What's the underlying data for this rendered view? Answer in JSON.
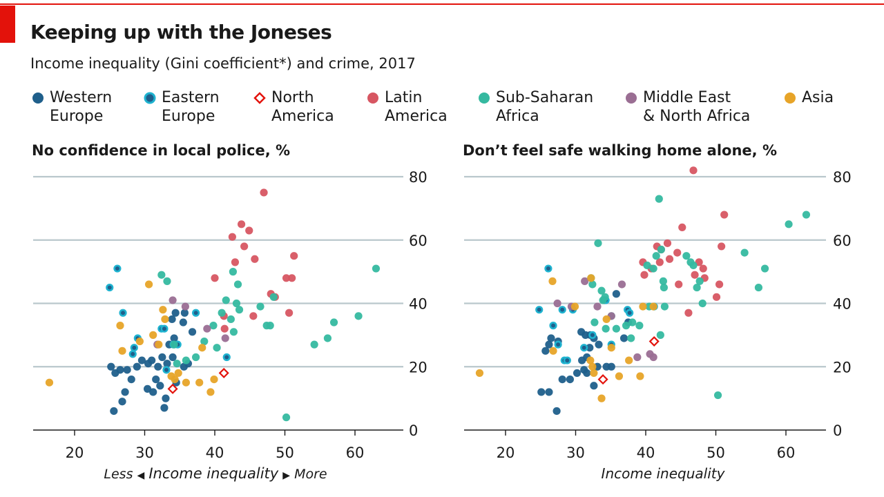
{
  "header": {
    "title": "Keeping up with the Joneses",
    "subtitle": "Income inequality (Gini coefficient*) and crime, 2017"
  },
  "legend": [
    {
      "key": "WE",
      "label": "Western\nEurope",
      "color": "#1f5f8b",
      "style": "filled"
    },
    {
      "key": "EE",
      "label": "Eastern\nEurope",
      "color": "#1fb3d0",
      "style": "ring"
    },
    {
      "key": "NA",
      "label": "North\nAmerica",
      "color": "#e3120b",
      "style": "diamond"
    },
    {
      "key": "LA",
      "label": "Latin\nAmerica",
      "color": "#d75662",
      "style": "filled"
    },
    {
      "key": "SSA",
      "label": "Sub-Saharan\nAfrica",
      "color": "#35b9a0",
      "style": "filled"
    },
    {
      "key": "MENA",
      "label": "Middle East\n& North Africa",
      "color": "#9a6e93",
      "style": "filled"
    },
    {
      "key": "AS",
      "label": "Asia",
      "color": "#e7a428",
      "style": "filled"
    }
  ],
  "axis": {
    "left_label_less": "Less",
    "left_label_main": "Income inequality",
    "left_label_more": "More",
    "right_label": "Income inequality",
    "less_arrow": "◀",
    "more_arrow": "▶"
  },
  "chart_data": [
    {
      "type": "scatter",
      "title": "No confidence in local police, %",
      "xlabel": "Income inequality",
      "ylabel": "No confidence in local police, %",
      "xlim": [
        14.5,
        67
      ],
      "ylim": [
        0,
        80
      ],
      "xticks": [
        20,
        30,
        40,
        50,
        60
      ],
      "yticks": [
        0,
        20,
        40,
        60,
        80
      ],
      "series": [
        {
          "name": "Western Europe",
          "key": "WE",
          "points": [
            [
              25.6,
              6
            ],
            [
              26.8,
              9
            ],
            [
              27.2,
              12
            ],
            [
              28.1,
              16
            ],
            [
              26.5,
              19
            ],
            [
              27.5,
              19
            ],
            [
              25.2,
              20
            ],
            [
              25.8,
              18
            ],
            [
              28.9,
              20
            ],
            [
              29.6,
              22
            ],
            [
              30.5,
              21
            ],
            [
              31,
              22
            ],
            [
              31.9,
              20
            ],
            [
              32.5,
              23
            ],
            [
              33.2,
              21
            ],
            [
              34,
              23
            ],
            [
              30.4,
              13
            ],
            [
              31.2,
              12
            ],
            [
              32.2,
              14
            ],
            [
              33,
              10
            ],
            [
              32.8,
              7
            ],
            [
              34.5,
              15
            ],
            [
              35.6,
              20
            ],
            [
              36.2,
              21
            ],
            [
              31.6,
              16
            ],
            [
              33.5,
              27
            ],
            [
              34.2,
              29
            ],
            [
              35.5,
              34
            ],
            [
              36.8,
              31
            ],
            [
              34.4,
              37
            ],
            [
              33.9,
              35
            ],
            [
              35.7,
              37
            ]
          ]
        },
        {
          "name": "Eastern Europe",
          "key": "EE",
          "points": [
            [
              25,
              45
            ],
            [
              26.1,
              51
            ],
            [
              26.9,
              37
            ],
            [
              28.3,
              24
            ],
            [
              28.5,
              26
            ],
            [
              29,
              29
            ],
            [
              32.4,
              32
            ],
            [
              32.8,
              32
            ],
            [
              34.1,
              27
            ],
            [
              34.7,
              27
            ],
            [
              37.3,
              37
            ],
            [
              41.7,
              23
            ],
            [
              33.1,
              19
            ]
          ]
        },
        {
          "name": "North America",
          "key": "NA",
          "points": [
            [
              34,
              13
            ],
            [
              41.3,
              18
            ]
          ]
        },
        {
          "name": "Latin America",
          "key": "LA",
          "points": [
            [
              47,
              75
            ],
            [
              42.5,
              61
            ],
            [
              43.8,
              65
            ],
            [
              44.9,
              63
            ],
            [
              44.2,
              58
            ],
            [
              42.9,
              53
            ],
            [
              45.7,
              54
            ],
            [
              40,
              48
            ],
            [
              48,
              43
            ],
            [
              48.6,
              42
            ],
            [
              50.2,
              48
            ],
            [
              51,
              48
            ],
            [
              51.3,
              55
            ],
            [
              50.6,
              37
            ],
            [
              45.5,
              36
            ],
            [
              41.3,
              36
            ],
            [
              41.4,
              32
            ]
          ]
        },
        {
          "name": "Sub-Saharan Africa",
          "key": "SSA",
          "points": [
            [
              32.4,
              49
            ],
            [
              33.2,
              47
            ],
            [
              34.2,
              27
            ],
            [
              34.6,
              21
            ],
            [
              35.9,
              22
            ],
            [
              37.3,
              23
            ],
            [
              38.5,
              28
            ],
            [
              39.8,
              33
            ],
            [
              40.3,
              26
            ],
            [
              41,
              37
            ],
            [
              41.6,
              41
            ],
            [
              42.3,
              35
            ],
            [
              42.7,
              31
            ],
            [
              43.1,
              40
            ],
            [
              43.3,
              46
            ],
            [
              42.6,
              50
            ],
            [
              43.5,
              38
            ],
            [
              46.5,
              39
            ],
            [
              47.4,
              33
            ],
            [
              47.9,
              33
            ],
            [
              48.4,
              42
            ],
            [
              50.2,
              4
            ],
            [
              54.2,
              27
            ],
            [
              56.1,
              29
            ],
            [
              57,
              34
            ],
            [
              60.5,
              36
            ],
            [
              63,
              51
            ]
          ]
        },
        {
          "name": "Middle East & North Africa",
          "key": "MENA",
          "points": [
            [
              31.8,
              27
            ],
            [
              34,
              41
            ],
            [
              35.8,
              39
            ],
            [
              38.9,
              32
            ],
            [
              41.5,
              29
            ]
          ]
        },
        {
          "name": "Asia",
          "key": "AS",
          "points": [
            [
              16.4,
              15
            ],
            [
              26.5,
              33
            ],
            [
              26.8,
              25
            ],
            [
              29.3,
              28
            ],
            [
              30.6,
              46
            ],
            [
              31.2,
              30
            ],
            [
              32,
              27
            ],
            [
              32.6,
              38
            ],
            [
              32.9,
              35
            ],
            [
              33.8,
              17
            ],
            [
              34.3,
              16
            ],
            [
              34.8,
              18
            ],
            [
              35.9,
              15
            ],
            [
              37.8,
              15
            ],
            [
              38.2,
              26
            ],
            [
              39.4,
              12
            ],
            [
              39.9,
              16
            ]
          ]
        }
      ]
    },
    {
      "type": "scatter",
      "title": "Don’t feel safe walking home alone, %",
      "xlabel": "Income inequality",
      "ylabel": "Don’t feel safe walking home alone, %",
      "xlim": [
        14.5,
        67
      ],
      "ylim": [
        0,
        80
      ],
      "xticks": [
        20,
        30,
        40,
        50,
        60
      ],
      "yticks": [
        0,
        20,
        40,
        60,
        80
      ],
      "series": [
        {
          "name": "Western Europe",
          "key": "WE",
          "points": [
            [
              25.1,
              12
            ],
            [
              26.2,
              12
            ],
            [
              27.3,
              6
            ],
            [
              28.1,
              16
            ],
            [
              29.2,
              16
            ],
            [
              30.2,
              18
            ],
            [
              31.2,
              19
            ],
            [
              31.6,
              18
            ],
            [
              33.1,
              20
            ],
            [
              30.9,
              22
            ],
            [
              31.6,
              23
            ],
            [
              32,
              26
            ],
            [
              33.3,
              27
            ],
            [
              32.1,
              30
            ],
            [
              31.4,
              30
            ],
            [
              30.8,
              31
            ],
            [
              32.6,
              29
            ],
            [
              26.2,
              27
            ],
            [
              27.5,
              28
            ],
            [
              26.5,
              29
            ],
            [
              25.7,
              25
            ],
            [
              34.1,
              41
            ],
            [
              35.8,
              43
            ],
            [
              37.5,
              34
            ],
            [
              36.9,
              29
            ],
            [
              34.4,
              20
            ],
            [
              32.6,
              14
            ],
            [
              35.1,
              20
            ]
          ]
        },
        {
          "name": "Eastern Europe",
          "key": "EE",
          "points": [
            [
              24.8,
              38
            ],
            [
              26.1,
              51
            ],
            [
              26.8,
              33
            ],
            [
              27.5,
              27
            ],
            [
              28.1,
              38
            ],
            [
              28.4,
              22
            ],
            [
              28.8,
              22
            ],
            [
              32.4,
              30
            ],
            [
              34.3,
              41
            ],
            [
              35.1,
              27
            ],
            [
              37.4,
              38
            ],
            [
              37.7,
              37
            ],
            [
              41.2,
              39
            ],
            [
              31.2,
              26
            ],
            [
              29.6,
              38
            ]
          ]
        },
        {
          "name": "North America",
          "key": "NA",
          "points": [
            [
              33.9,
              16
            ],
            [
              41.2,
              28
            ]
          ]
        },
        {
          "name": "Latin America",
          "key": "LA",
          "points": [
            [
              46.8,
              82
            ],
            [
              51.2,
              68
            ],
            [
              45.2,
              64
            ],
            [
              41.6,
              58
            ],
            [
              42.2,
              57
            ],
            [
              43.1,
              59
            ],
            [
              44.5,
              56
            ],
            [
              43.4,
              54
            ],
            [
              42,
              53
            ],
            [
              40.8,
              51
            ],
            [
              39.8,
              49
            ],
            [
              39.6,
              53
            ],
            [
              47.6,
              53
            ],
            [
              48.2,
              51
            ],
            [
              47,
              49
            ],
            [
              50.8,
              58
            ],
            [
              44.7,
              46
            ],
            [
              48.4,
              48
            ],
            [
              50.5,
              46
            ],
            [
              50.1,
              42
            ],
            [
              46.1,
              37
            ]
          ]
        },
        {
          "name": "Sub-Saharan Africa",
          "key": "SSA",
          "points": [
            [
              32.2,
              48
            ],
            [
              32.4,
              46
            ],
            [
              33.2,
              59
            ],
            [
              33.7,
              44
            ],
            [
              34.2,
              42
            ],
            [
              32.7,
              34
            ],
            [
              34.3,
              32
            ],
            [
              33.9,
              41
            ],
            [
              35.1,
              36
            ],
            [
              35.8,
              32
            ],
            [
              37.2,
              33
            ],
            [
              38.1,
              34
            ],
            [
              39.1,
              33
            ],
            [
              37.9,
              29
            ],
            [
              40.5,
              39
            ],
            [
              40.2,
              52
            ],
            [
              41.1,
              51
            ],
            [
              41.5,
              55
            ],
            [
              41.9,
              73
            ],
            [
              42.2,
              57
            ],
            [
              42.5,
              47
            ],
            [
              42.6,
              45
            ],
            [
              42.7,
              39
            ],
            [
              45.8,
              55
            ],
            [
              46.4,
              53
            ],
            [
              46.8,
              52
            ],
            [
              47.3,
              45
            ],
            [
              47.7,
              47
            ],
            [
              48.1,
              40
            ],
            [
              54.1,
              56
            ],
            [
              56.1,
              45
            ],
            [
              57,
              51
            ],
            [
              60.4,
              65
            ],
            [
              62.9,
              68
            ],
            [
              50.3,
              11
            ],
            [
              42.1,
              30
            ]
          ]
        },
        {
          "name": "Middle East & North Africa",
          "key": "MENA",
          "points": [
            [
              27.4,
              40
            ],
            [
              29.4,
              39
            ],
            [
              31.3,
              47
            ],
            [
              33.1,
              39
            ],
            [
              35.1,
              36
            ],
            [
              36.6,
              46
            ],
            [
              38.8,
              23
            ],
            [
              40.6,
              24
            ],
            [
              41.1,
              23
            ]
          ]
        },
        {
          "name": "Asia",
          "key": "AS",
          "points": [
            [
              16.3,
              18
            ],
            [
              26.7,
              47
            ],
            [
              26.8,
              25
            ],
            [
              29.9,
              39
            ],
            [
              32.2,
              48
            ],
            [
              32.1,
              22
            ],
            [
              32.4,
              20
            ],
            [
              32.6,
              18
            ],
            [
              33.7,
              10
            ],
            [
              34.4,
              35
            ],
            [
              35.1,
              26
            ],
            [
              36.2,
              17
            ],
            [
              37.6,
              22
            ],
            [
              39.2,
              17
            ],
            [
              39.6,
              39
            ],
            [
              41.1,
              39
            ]
          ]
        }
      ]
    }
  ]
}
